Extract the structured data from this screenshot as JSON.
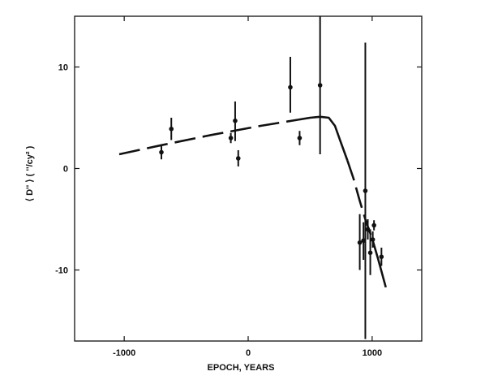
{
  "chart_data": {
    "type": "scatter",
    "title": "",
    "xlabel": "EPOCH, YEARS",
    "ylabel": "⟨ D'' ⟩ ( ''/cy² )",
    "xlim": [
      -1400,
      1400
    ],
    "ylim": [
      -17,
      15
    ],
    "x_ticks": [
      -1000,
      0,
      1000
    ],
    "x_tick_labels": [
      "-1000",
      "0",
      "1000"
    ],
    "y_ticks": [
      10,
      0,
      -10
    ],
    "y_tick_labels": [
      "10",
      "0",
      "-10"
    ],
    "grid": false,
    "legend": "none",
    "series": [
      {
        "kind": "points_with_error_bars",
        "points": [
          {
            "x": -700,
            "y": 1.6,
            "ylo": 0.9,
            "yhi": 2.3
          },
          {
            "x": -620,
            "y": 3.9,
            "ylo": 2.8,
            "yhi": 5.0
          },
          {
            "x": -140,
            "y": 3.0,
            "ylo": 2.5,
            "yhi": 3.5
          },
          {
            "x": -105,
            "y": 4.7,
            "ylo": 2.7,
            "yhi": 6.6
          },
          {
            "x": -80,
            "y": 1.0,
            "ylo": 0.2,
            "yhi": 1.8
          },
          {
            "x": 340,
            "y": 8.0,
            "ylo": 5.5,
            "yhi": 11.0
          },
          {
            "x": 415,
            "y": 3.0,
            "ylo": 2.3,
            "yhi": 3.7
          },
          {
            "x": 580,
            "y": 8.2,
            "ylo": 1.4,
            "yhi": 15.0
          },
          {
            "x": 900,
            "y": -7.3,
            "ylo": -10.0,
            "yhi": -4.5
          },
          {
            "x": 930,
            "y": -7.1,
            "ylo": -9.0,
            "yhi": -5.3
          },
          {
            "x": 945,
            "y": -2.2,
            "ylo": -16.8,
            "yhi": 12.4
          },
          {
            "x": 965,
            "y": -6.0,
            "ylo": -7.0,
            "yhi": -5.0
          },
          {
            "x": 985,
            "y": -8.3,
            "ylo": -10.5,
            "yhi": -6.0
          },
          {
            "x": 1005,
            "y": -7.0,
            "ylo": -7.8,
            "yhi": -6.2
          },
          {
            "x": 1015,
            "y": -5.6,
            "ylo": -6.1,
            "yhi": -5.1
          },
          {
            "x": 1075,
            "y": -8.7,
            "ylo": -9.6,
            "yhi": -7.8
          }
        ]
      },
      {
        "kind": "fitted_curve",
        "style": "dashed then solid",
        "segments": [
          {
            "style": "dashed",
            "points": [
              [
                -1040,
                1.4
              ],
              [
                -700,
                2.3
              ],
              [
                -300,
                3.3
              ],
              [
                100,
                4.2
              ],
              [
                400,
                4.8
              ]
            ]
          },
          {
            "style": "solid",
            "points": [
              [
                400,
                4.8
              ],
              [
                500,
                5.0
              ],
              [
                580,
                5.1
              ],
              [
                650,
                5.0
              ],
              [
                700,
                4.2
              ],
              [
                750,
                2.5
              ],
              [
                800,
                0.8
              ]
            ]
          },
          {
            "style": "dashed",
            "points": [
              [
                800,
                0.8
              ],
              [
                850,
                -1.0
              ],
              [
                900,
                -3.2
              ],
              [
                950,
                -5.2
              ],
              [
                1000,
                -6.9
              ]
            ]
          },
          {
            "style": "solid",
            "points": [
              [
                1000,
                -6.9
              ],
              [
                1050,
                -9.0
              ],
              [
                1110,
                -11.7
              ]
            ]
          }
        ]
      }
    ]
  },
  "colors": {
    "ink": "#111111",
    "background": "#ffffff"
  }
}
